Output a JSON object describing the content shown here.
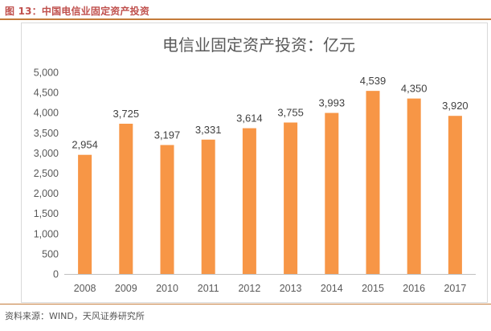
{
  "caption": "图 13：中国电信业固定资产投资",
  "source": "资料来源：WIND，天风证券研究所",
  "colors": {
    "bar": "#F79646",
    "accent": "#c0504d",
    "rule": "#c47b3a",
    "grid": "#d9d9d9",
    "axis": "#bfbfbf"
  },
  "chart_data": {
    "type": "bar",
    "title": "电信业固定资产投资：亿元",
    "categories": [
      "2008",
      "2009",
      "2010",
      "2011",
      "2012",
      "2013",
      "2014",
      "2015",
      "2016",
      "2017"
    ],
    "values": [
      2954,
      3725,
      3197,
      3331,
      3614,
      3755,
      3993,
      4539,
      4350,
      3920
    ],
    "value_labels": [
      "2,954",
      "3,725",
      "3,197",
      "3,331",
      "3,614",
      "3,755",
      "3,993",
      "4,539",
      "4,350",
      "3,920"
    ],
    "ylim": [
      0,
      5000
    ],
    "yticks": [
      0,
      500,
      1000,
      1500,
      2000,
      2500,
      3000,
      3500,
      4000,
      4500,
      5000
    ],
    "ytick_labels": [
      "0",
      "500",
      "1,000",
      "1,500",
      "2,000",
      "2,500",
      "3,000",
      "3,500",
      "4,000",
      "4,500",
      "5,000"
    ],
    "xlabel": "",
    "ylabel": "",
    "grid": false,
    "legend": "none"
  }
}
